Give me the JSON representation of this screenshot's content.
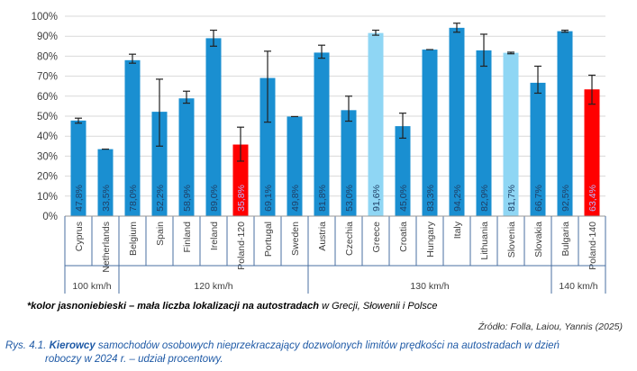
{
  "chart_data": {
    "type": "bar",
    "ylim": [
      0,
      100
    ],
    "yticks": [
      "0%",
      "10%",
      "20%",
      "30%",
      "40%",
      "50%",
      "60%",
      "70%",
      "80%",
      "90%",
      "100%"
    ],
    "categories": [
      "Cyprus",
      "Netherlands",
      "Belgium",
      "Spain",
      "Finland",
      "Ireland",
      "Poland-120",
      "Portugal",
      "Sweden",
      "Austria",
      "Czechia",
      "Greece",
      "Croatia",
      "Hungary",
      "Italy",
      "Lithuania",
      "Slovenia",
      "Slovakia",
      "Bulgaria",
      "Poland-140"
    ],
    "values": [
      47.8,
      33.5,
      78.0,
      52.2,
      58.9,
      89.0,
      35.8,
      69.1,
      49.8,
      81.8,
      53.0,
      91.6,
      45.0,
      83.3,
      94.2,
      82.9,
      81.7,
      66.7,
      92.5,
      63.4
    ],
    "value_labels": [
      "47,8%",
      "33,5%",
      "78,0%",
      "52,2%",
      "58,9%",
      "89,0%",
      "35,8%",
      "69,1%",
      "49,8%",
      "81,8%",
      "53,0%",
      "91,6%",
      "45,0%",
      "83,3%",
      "94,2%",
      "82,9%",
      "81,7%",
      "66,7%",
      "92,5%",
      "63,4%"
    ],
    "error_low": [
      46.5,
      33.5,
      76.5,
      35.0,
      56.5,
      85.0,
      27.5,
      47.0,
      49.8,
      79.0,
      47.5,
      90.5,
      39.0,
      83.3,
      92.0,
      75.0,
      81.2,
      61.5,
      92.0,
      56.0
    ],
    "error_high": [
      49.0,
      33.5,
      81.0,
      68.5,
      62.5,
      93.0,
      44.5,
      82.5,
      49.8,
      85.5,
      60.0,
      93.0,
      51.5,
      83.3,
      96.5,
      91.0,
      82.0,
      75.0,
      93.0,
      70.5
    ],
    "bar_colors": [
      "#1a8fd1",
      "#1a8fd1",
      "#1a8fd1",
      "#1a8fd1",
      "#1a8fd1",
      "#1a8fd1",
      "#ff0000",
      "#1a8fd1",
      "#1a8fd1",
      "#1a8fd1",
      "#1a8fd1",
      "#8fd6f4",
      "#1a8fd1",
      "#1a8fd1",
      "#1a8fd1",
      "#1a8fd1",
      "#8fd6f4",
      "#1a8fd1",
      "#1a8fd1",
      "#ff0000"
    ],
    "groups": [
      {
        "label": "100 km/h",
        "start": 0,
        "end": 1
      },
      {
        "label": "120 km/h",
        "start": 2,
        "end": 8
      },
      {
        "label": "130 km/h",
        "start": 9,
        "end": 17
      },
      {
        "label": "140 km/h",
        "start": 18,
        "end": 19
      }
    ],
    "colors": {
      "blue": "#1a8fd1",
      "lightblue": "#8fd6f4",
      "red": "#ff0000",
      "grid": "#d9d9d9",
      "text": "#404040"
    }
  },
  "footnote": {
    "bold_part": "*kolor jasnoniebieski – mała liczba lokalizacji na autostradach",
    "rest": " w Grecji, Słowenii i Polsce"
  },
  "source": "Źródło: Folla, Laiou, Yannis (2025)",
  "caption": {
    "label": "Rys. 4.1.",
    "bold_part": "Kierowcy",
    "rest": " samochodów osobowych nieprzekraczający dozwolonych limitów prędkości na autostradach w dzień",
    "line2": "roboczy w 2024 r. – udział procentowy."
  }
}
